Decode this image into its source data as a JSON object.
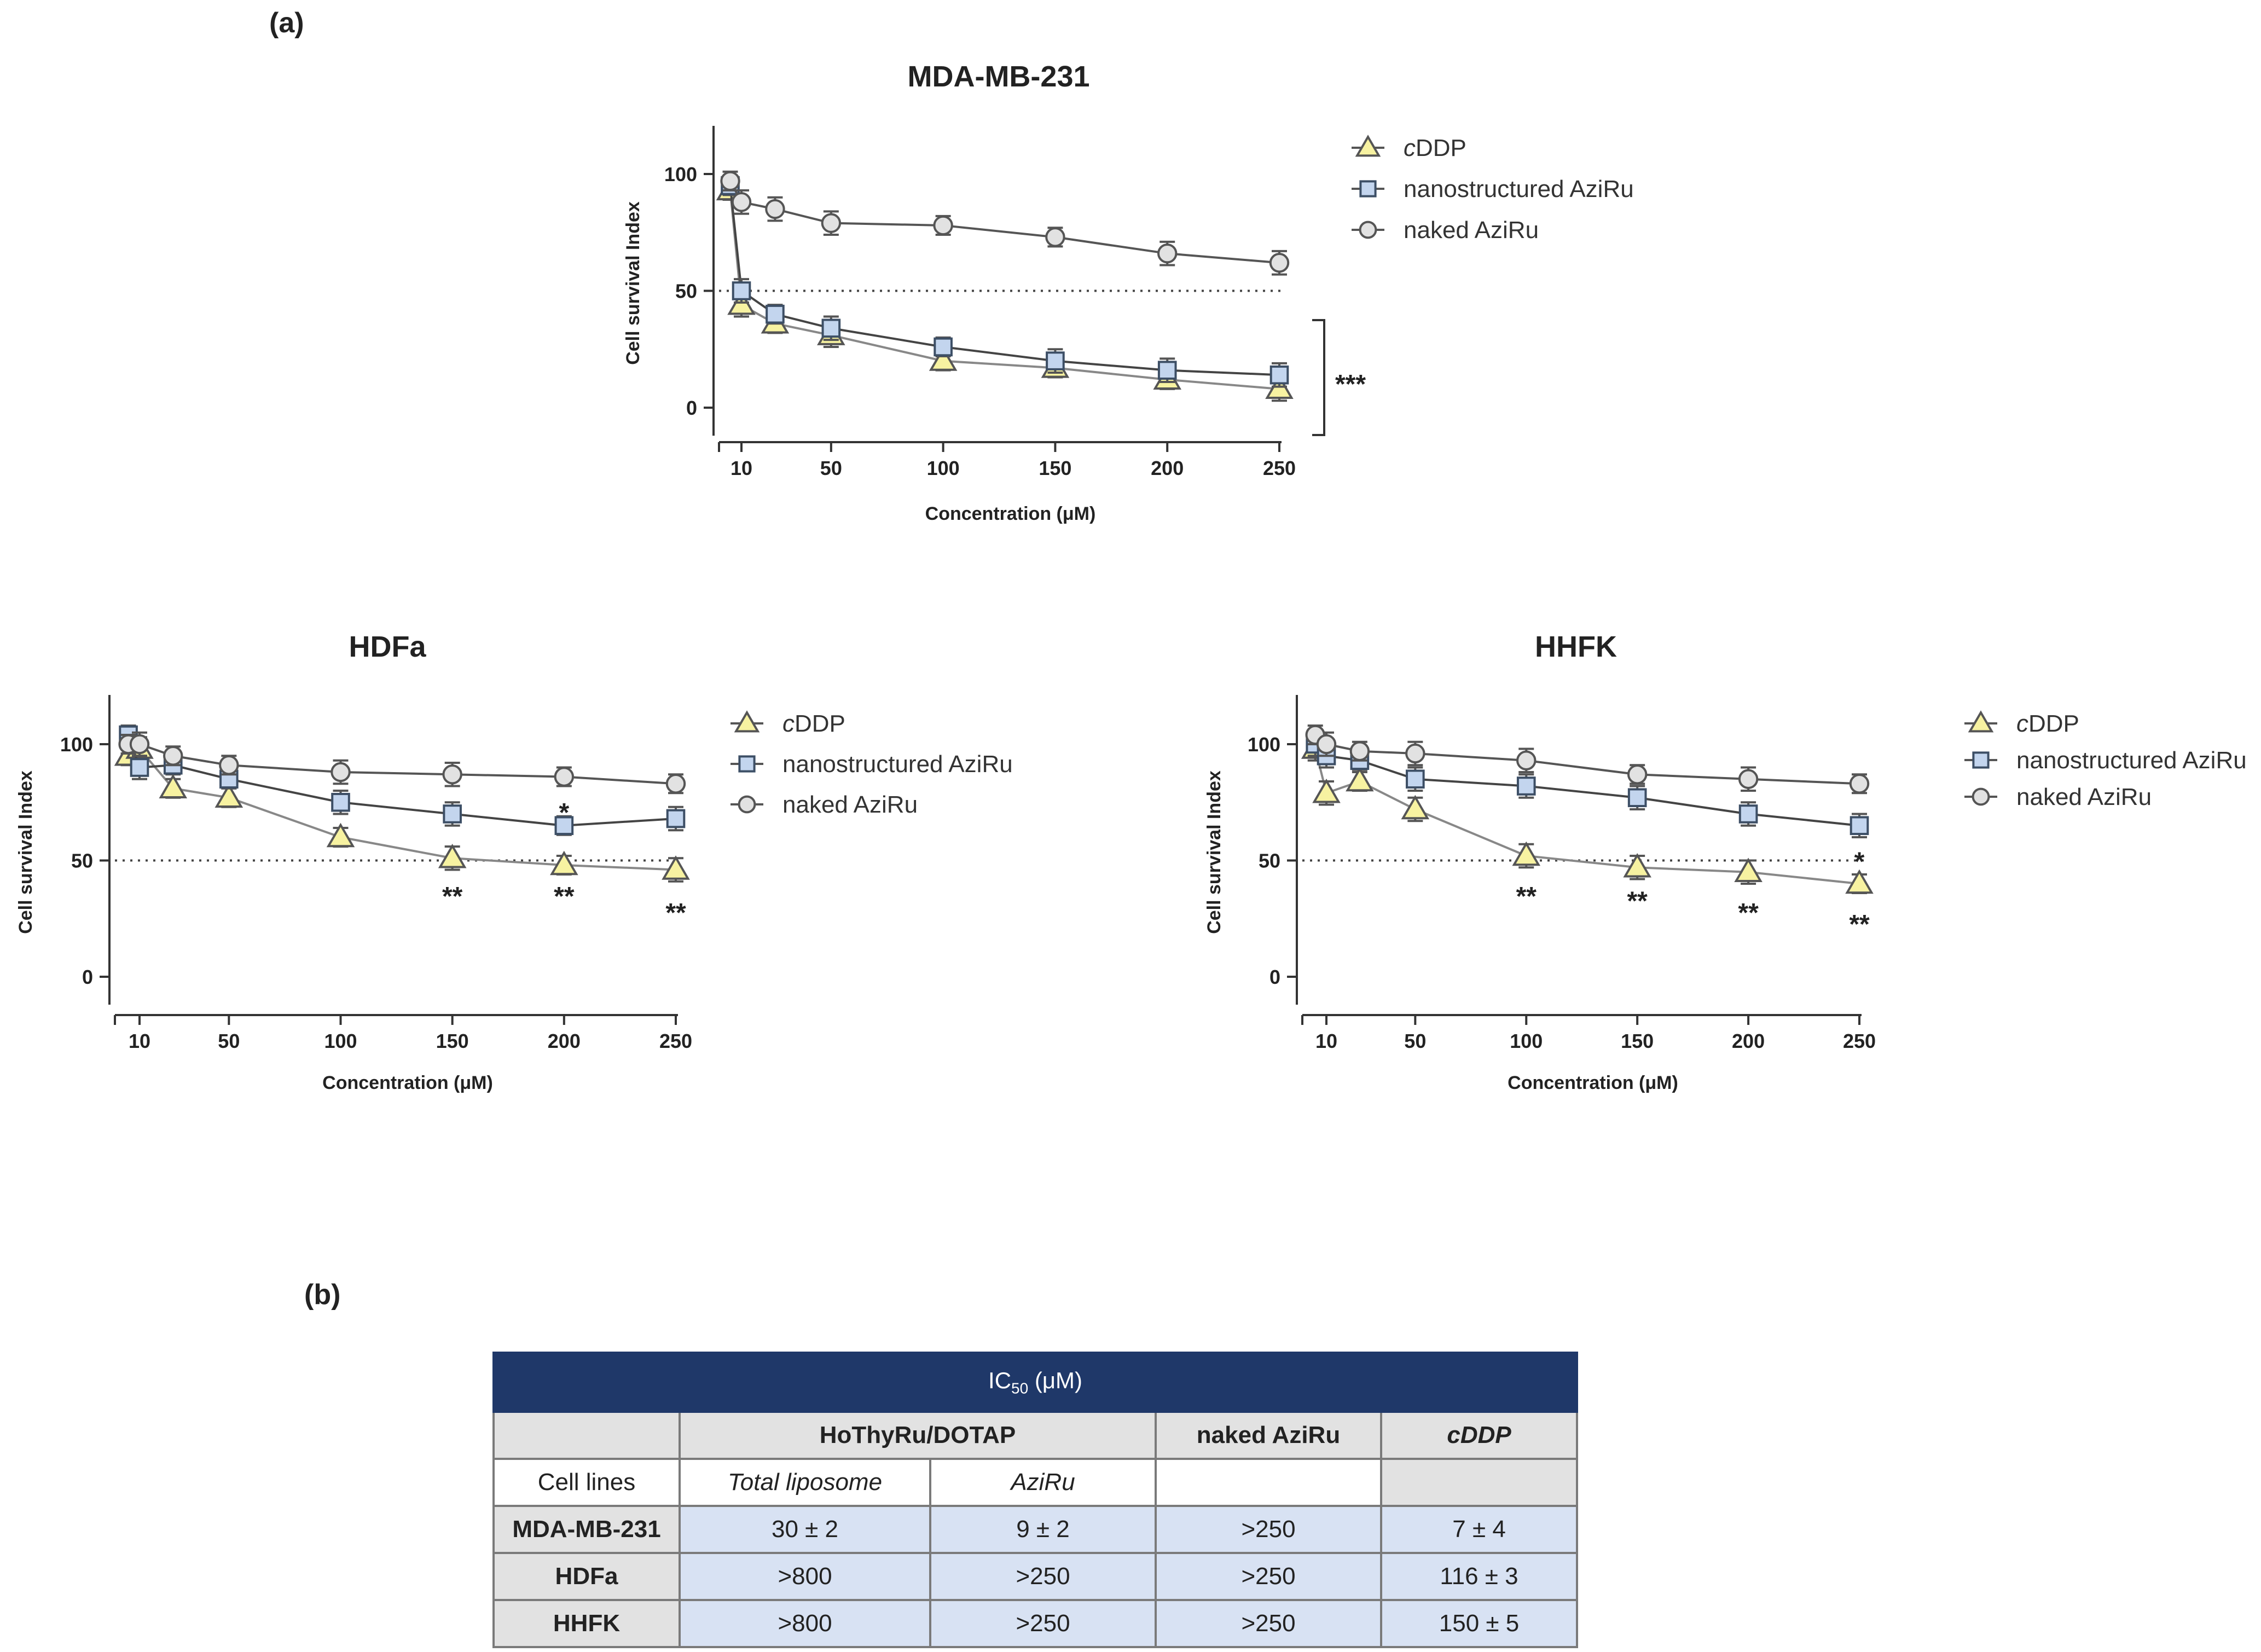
{
  "panels": {
    "a": "(a)",
    "b": "(b)"
  },
  "chart_data": [
    {
      "type": "line",
      "title": "MDA-MB-231",
      "xlabel": "Concentration (μM)",
      "ylabel": "Cell survival Index",
      "x": [
        5,
        10,
        25,
        50,
        100,
        150,
        200,
        250
      ],
      "xticks": [
        10,
        50,
        100,
        150,
        200,
        250
      ],
      "yticks": [
        0,
        50,
        100
      ],
      "xlim": [
        0,
        250
      ],
      "ylim": [
        -12,
        120
      ],
      "reference_line": 50,
      "series": [
        {
          "name": "cDDP",
          "name_italic_prefix": "c",
          "name_rest": "DDP",
          "marker": "triangle",
          "values": [
            93,
            44,
            36,
            31,
            20,
            17,
            12,
            8
          ],
          "errors": [
            4,
            5,
            4,
            5,
            4,
            4,
            4,
            5
          ]
        },
        {
          "name": "nanostructured AziRu",
          "marker": "square",
          "values": [
            95,
            50,
            40,
            34,
            26,
            20,
            16,
            14
          ],
          "errors": [
            4,
            5,
            4,
            5,
            4,
            5,
            5,
            5
          ]
        },
        {
          "name": "naked AziRu",
          "marker": "circle",
          "values": [
            97,
            88,
            85,
            79,
            78,
            73,
            66,
            62
          ],
          "errors": [
            4,
            5,
            5,
            5,
            4,
            4,
            5,
            5
          ]
        }
      ],
      "annotations": [
        {
          "text": "***",
          "target": "bracket"
        }
      ]
    },
    {
      "type": "line",
      "title": "HDFa",
      "xlabel": "Concentration (μM)",
      "ylabel": "Cell survival Index",
      "x": [
        5,
        10,
        25,
        50,
        100,
        150,
        200,
        250
      ],
      "xticks": [
        10,
        50,
        100,
        150,
        200,
        250
      ],
      "yticks": [
        0,
        50,
        100
      ],
      "xlim": [
        0,
        250
      ],
      "ylim": [
        -12,
        120
      ],
      "reference_line": 50,
      "series": [
        {
          "name": "cDDP",
          "name_italic_prefix": "c",
          "name_rest": "DDP",
          "marker": "triangle",
          "values": [
            95,
            98,
            81,
            77,
            60,
            51,
            48,
            46
          ],
          "errors": [
            4,
            5,
            4,
            4,
            4,
            5,
            4,
            5
          ]
        },
        {
          "name": "nanostructured AziRu",
          "marker": "square",
          "values": [
            104,
            90,
            91,
            85,
            75,
            70,
            65,
            68
          ],
          "errors": [
            4,
            5,
            4,
            4,
            5,
            5,
            4,
            5
          ]
        },
        {
          "name": "naked AziRu",
          "marker": "circle",
          "values": [
            100,
            100,
            95,
            91,
            88,
            87,
            86,
            83
          ],
          "errors": [
            4,
            5,
            4,
            4,
            5,
            5,
            4,
            4
          ]
        }
      ],
      "annotations": [
        {
          "text": "**",
          "x": 150,
          "y": 36
        },
        {
          "text": "**",
          "x": 200,
          "y": 36
        },
        {
          "text": "**",
          "x": 250,
          "y": 29
        },
        {
          "text": "*",
          "x": 200,
          "y": 72
        }
      ]
    },
    {
      "type": "line",
      "title": "HHFK",
      "xlabel": "Concentration (μM)",
      "ylabel": "Cell survival Index",
      "x": [
        5,
        10,
        25,
        50,
        100,
        150,
        200,
        250
      ],
      "xticks": [
        10,
        50,
        100,
        150,
        200,
        250
      ],
      "yticks": [
        0,
        50,
        100
      ],
      "xlim": [
        0,
        250
      ],
      "ylim": [
        -12,
        120
      ],
      "reference_line": 50,
      "series": [
        {
          "name": "cDDP",
          "name_italic_prefix": "c",
          "name_rest": "DDP",
          "marker": "triangle",
          "values": [
            98,
            79,
            84,
            72,
            52,
            47,
            45,
            40
          ],
          "errors": [
            5,
            5,
            4,
            5,
            5,
            5,
            5,
            4
          ]
        },
        {
          "name": "nanostructured AziRu",
          "marker": "square",
          "values": [
            100,
            95,
            93,
            85,
            82,
            77,
            70,
            65
          ],
          "errors": [
            5,
            5,
            4,
            5,
            5,
            5,
            5,
            5
          ]
        },
        {
          "name": "naked AziRu",
          "marker": "circle",
          "values": [
            104,
            100,
            97,
            96,
            93,
            87,
            85,
            83
          ],
          "errors": [
            4,
            5,
            4,
            5,
            5,
            4,
            5,
            4
          ]
        }
      ],
      "annotations": [
        {
          "text": "**",
          "x": 100,
          "y": 36
        },
        {
          "text": "**",
          "x": 150,
          "y": 34
        },
        {
          "text": "**",
          "x": 200,
          "y": 29
        },
        {
          "text": "**",
          "x": 250,
          "y": 24
        },
        {
          "text": "*",
          "x": 250,
          "y": 51
        }
      ]
    }
  ],
  "table": {
    "title_main": "IC",
    "title_sub": "50",
    "title_unit": " (μM)",
    "group_hothyru": "HoThyRu/DOTAP",
    "group_naked": "naked AziRu",
    "group_cddp_italic": "c",
    "group_cddp_rest": "DDP",
    "col_cell_lines": "Cell lines",
    "col_total_liposome": "Total liposome",
    "col_aziru": "AziRu",
    "rows": [
      {
        "cell_line": "MDA-MB-231",
        "total_liposome": "30 ± 2",
        "aziru": "9 ± 2",
        "naked": ">250",
        "cddp": "7 ± 4"
      },
      {
        "cell_line": "HDFa",
        "total_liposome": ">800",
        "aziru": ">250",
        "naked": ">250",
        "cddp": "116 ± 3"
      },
      {
        "cell_line": "HHFK",
        "total_liposome": ">800",
        "aziru": ">250",
        "naked": ">250",
        "cddp": "150 ± 5"
      }
    ]
  }
}
